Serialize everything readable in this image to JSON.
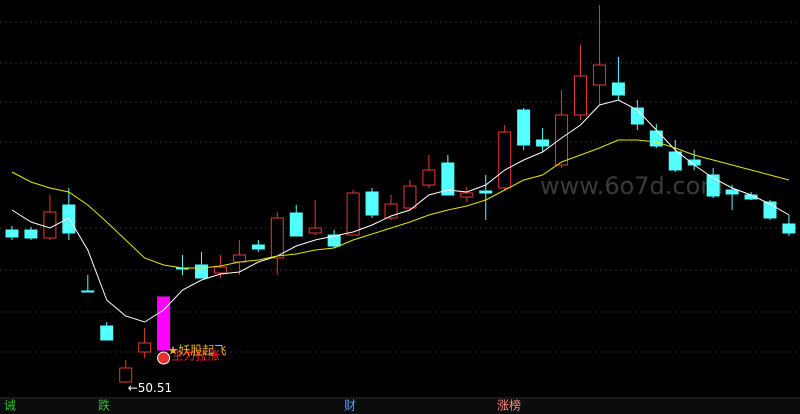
{
  "chart_data": {
    "type": "candlestick",
    "open": [
      81,
      81,
      79.4,
      86,
      68.8,
      61.8,
      50.6,
      56.6,
      57,
      73.4,
      74,
      72.4,
      74.6,
      78,
      75.4,
      84.4,
      80.4,
      80,
      80,
      88.6,
      83.4,
      85.4,
      90,
      94.4,
      87.6,
      88.8,
      89.4,
      105,
      99,
      94,
      104,
      110,
      110.4,
      105.4,
      100.8,
      96.6,
      95,
      92,
      89,
      88,
      86.6,
      82.2
    ],
    "high": [
      81.8,
      81.6,
      88,
      89.4,
      72,
      62.6,
      55,
      61.4,
      67.6,
      76,
      76.6,
      76,
      79,
      79,
      84.6,
      86,
      87,
      81,
      89,
      89.4,
      88,
      91,
      96,
      96,
      89.6,
      92,
      102,
      105.4,
      101.4,
      109,
      118,
      126,
      115.6,
      107,
      102.2,
      99,
      97,
      93.4,
      90,
      88.6,
      87,
      84
    ],
    "low": [
      79,
      79,
      79,
      79,
      68.8,
      59,
      50.51,
      55.4,
      57,
      72,
      71.4,
      71.4,
      72,
      76.6,
      72,
      79.8,
      80,
      77.4,
      80,
      83.4,
      83,
      85,
      89.4,
      88,
      86.6,
      83,
      89,
      97,
      96.6,
      93.4,
      103,
      106,
      107,
      101,
      97.4,
      92.6,
      93,
      87.4,
      85,
      87,
      83,
      79.8
    ],
    "close": [
      79.6,
      79.4,
      84.6,
      80.4,
      68.8,
      59,
      53.4,
      58.4,
      67.6,
      73.4,
      71.4,
      73.6,
      76,
      77.2,
      83.4,
      79.8,
      81.4,
      77.8,
      88.4,
      84,
      86.2,
      89.8,
      93,
      88,
      88.4,
      88.4,
      100.6,
      98,
      97.8,
      104,
      111.8,
      114,
      108,
      102.2,
      97.8,
      93,
      94,
      87.8,
      88.2,
      87.2,
      83.4,
      80.4
    ],
    "up_color": "#e83838",
    "down_color": "#54ffff",
    "highlight_index": 8,
    "highlight_color": "#ff00ff",
    "ylim": [
      47,
      127
    ],
    "series": [
      {
        "color": "#ffffff",
        "values": [
          85,
          82.6,
          81.4,
          83.4,
          77,
          67,
          63.8,
          62.6,
          65,
          69,
          71,
          72.2,
          72.6,
          74.6,
          75.8,
          77.8,
          79,
          79.8,
          80.6,
          82,
          83.8,
          85,
          88,
          89,
          88.6,
          90,
          93,
          95,
          96.6,
          99.4,
          102,
          106,
          107,
          105,
          101,
          97,
          94,
          91.4,
          89.4,
          88,
          86.2,
          84
        ]
      },
      {
        "color": "#e6e600",
        "values": [
          92.6,
          90.6,
          89.4,
          88.6,
          86,
          82.6,
          79,
          75.4,
          74,
          73.4,
          73.4,
          73.8,
          74.6,
          75,
          75.8,
          76.2,
          77,
          77.4,
          79,
          80.2,
          81.4,
          82.6,
          84,
          85,
          85.8,
          87,
          89,
          91,
          92,
          94.6,
          96,
          97.4,
          99,
          99,
          98.6,
          97.4,
          96,
          95,
          94,
          93,
          92,
          91
        ]
      }
    ],
    "low_label": "←50.51",
    "signal_label": "★妖股起飞",
    "signal_label2": "主力拉涨",
    "watermark": "www.6o7d.com",
    "tabs": [
      "诫",
      "跌",
      "财",
      "涨榜"
    ]
  }
}
